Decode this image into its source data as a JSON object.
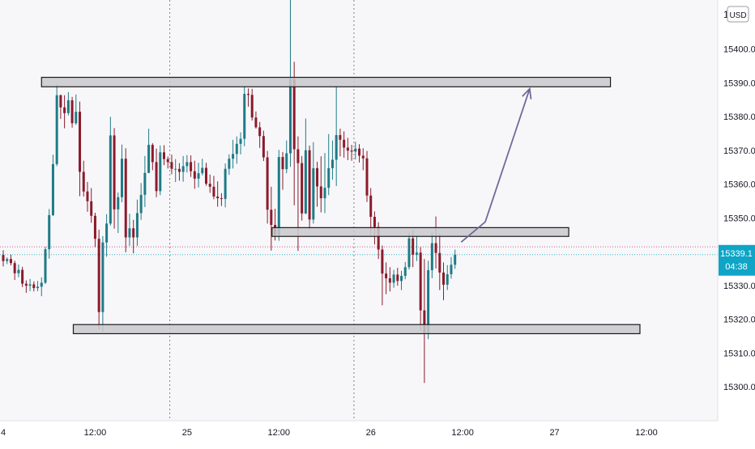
{
  "chart_data": {
    "type": "candlestick",
    "title": "",
    "currency_badge": "USD",
    "axis_top_label": "1",
    "ylim": [
      15294,
      15426
    ],
    "y_ticks": [
      "15400.0",
      "15390.0",
      "15380.0",
      "15370.0",
      "15360.0",
      "15350.0",
      "15340.0",
      "15330.0",
      "15320.0",
      "15310.0",
      "15300.0"
    ],
    "y_tick_values": [
      15400,
      15390,
      15380,
      15370,
      15360,
      15350,
      15340,
      15330,
      15320,
      15310,
      15300
    ],
    "x_ticks": [
      "4",
      "12:00",
      "25",
      "12:00",
      "26",
      "12:00",
      "27",
      "12:00"
    ],
    "x_tick_values": [
      0,
      24,
      48,
      72,
      96,
      120,
      144,
      168
    ],
    "xlim": [
      0,
      188
    ],
    "day_separators": [
      43.5,
      91.6
    ],
    "current_price": "15339.1",
    "countdown": "04:38",
    "last_price_value": 15339.1,
    "prev_close_value": 15341.4,
    "colors": {
      "up": "#1e7b86",
      "down": "#8b1a2b",
      "price_line": "#3bb3c4",
      "prev_close_line": "#c85d8a",
      "price_badge": "#0ea5c7",
      "box_fill": "#c9c9cc",
      "box_stroke": "#1a1a1a",
      "arrow": "#6f6a98",
      "background": "#f7f7fa"
    },
    "zones": [
      {
        "x0": 10,
        "x1": 158.6,
        "y_top": 15391.6,
        "y_bottom": 15388.8
      },
      {
        "x0": 70.2,
        "x1": 147.7,
        "y_top": 15347.1,
        "y_bottom": 15344.5
      },
      {
        "x0": 18.3,
        "x1": 166.3,
        "y_top": 15318.4,
        "y_bottom": 15315.7
      }
    ],
    "projection_arrow": [
      [
        119.6,
        15342.8
      ],
      [
        125.9,
        15348.8
      ],
      [
        137.5,
        15388.2
      ]
    ],
    "candles": [
      [
        0,
        15339,
        15340.4,
        15335.6,
        15337.2
      ],
      [
        1,
        15337.2,
        15338.3,
        15336.3,
        15337.8
      ],
      [
        2,
        15337.8,
        15339.1,
        15335.9,
        15336.6
      ],
      [
        3,
        15336.6,
        15337.3,
        15331.6,
        15333.6
      ],
      [
        4,
        15333.6,
        15336.2,
        15332.4,
        15334.6
      ],
      [
        5,
        15334.6,
        15335.5,
        15329.5,
        15330.5
      ],
      [
        6,
        15330.5,
        15331.5,
        15327.8,
        15329.9
      ],
      [
        7,
        15329.9,
        15331.9,
        15328.3,
        15330.3
      ],
      [
        8,
        15330.3,
        15331.2,
        15328.2,
        15329.2
      ],
      [
        9,
        15329.2,
        15331.3,
        15328.3,
        15329.6
      ],
      [
        10,
        15329.6,
        15332.4,
        15326.8,
        15330.8
      ],
      [
        11,
        15330.8,
        15341.4,
        15330.4,
        15340.7
      ],
      [
        12,
        15340.7,
        15352.6,
        15337.9,
        15350.8
      ],
      [
        13,
        15350.8,
        15368.7,
        15350.5,
        15365.9
      ],
      [
        14,
        15365.9,
        15389.5,
        15365.3,
        15386.3
      ],
      [
        15,
        15386.3,
        15386.5,
        15379.3,
        15382.7
      ],
      [
        16,
        15382.7,
        15386.3,
        15376.5,
        15381
      ],
      [
        17,
        15381,
        15387.2,
        15380.3,
        15384.8
      ],
      [
        18,
        15384.8,
        15385.8,
        15376.7,
        15378
      ],
      [
        19,
        15378,
        15386.5,
        15377.5,
        15381.4
      ],
      [
        20,
        15381.4,
        15384.4,
        15356.4,
        15363.6
      ],
      [
        21,
        15363.6,
        15366.9,
        15356.3,
        15357.8
      ],
      [
        22,
        15357.8,
        15360.6,
        15351.8,
        15354.9
      ],
      [
        23,
        15354.9,
        15358.8,
        15348.5,
        15350.6
      ],
      [
        24,
        15350.6,
        15351.5,
        15341.3,
        15343.8
      ],
      [
        25,
        15343.8,
        15346.5,
        15316.9,
        15322.1
      ],
      [
        26,
        15322.1,
        15344.6,
        15316.3,
        15342.7
      ],
      [
        27,
        15342.7,
        15351.1,
        15338.5,
        15348.3
      ],
      [
        28,
        15348.3,
        15379.9,
        15347.7,
        15374.4
      ],
      [
        29,
        15374.4,
        15376.6,
        15346.8,
        15352.5
      ],
      [
        30,
        15352.5,
        15357.5,
        15345.5,
        15356.1
      ],
      [
        31,
        15356.1,
        15371.7,
        15354.6,
        15367.5
      ],
      [
        32,
        15367.5,
        15370.6,
        15339.8,
        15344.2
      ],
      [
        33,
        15344.2,
        15351.2,
        15341.7,
        15346.9
      ],
      [
        34,
        15346.9,
        15349.4,
        15339.5,
        15344.2
      ],
      [
        35,
        15344.2,
        15355.4,
        15341.7,
        15351.4
      ],
      [
        36,
        15351.4,
        15360.3,
        15349.4,
        15356.8
      ],
      [
        37,
        15356.8,
        15368.3,
        15353.2,
        15363.3
      ],
      [
        38,
        15363.3,
        15376.4,
        15363.2,
        15371.6
      ],
      [
        39,
        15371.6,
        15372.1,
        15364.1,
        15366.5
      ],
      [
        40,
        15366.5,
        15370.5,
        15356.1,
        15357.9
      ],
      [
        41,
        15357.9,
        15371.4,
        15356.7,
        15369.4
      ],
      [
        42,
        15369.4,
        15371.5,
        15365.6,
        15367.4
      ],
      [
        43,
        15367.4,
        15368.2,
        15364.6,
        15366.5
      ],
      [
        44,
        15366.5,
        15368.7,
        15362.9,
        15364.5
      ],
      [
        45,
        15364.5,
        15367.4,
        15360.6,
        15364.5
      ],
      [
        46,
        15364.5,
        15366.2,
        15361,
        15363.6
      ],
      [
        47,
        15363.6,
        15368.3,
        15360.7,
        15365.3
      ],
      [
        48,
        15365.3,
        15368.6,
        15363.4,
        15366.5
      ],
      [
        49,
        15366.5,
        15368.5,
        15362.1,
        15363.8
      ],
      [
        50,
        15363.8,
        15366.9,
        15358.6,
        15361.6
      ],
      [
        51,
        15361.6,
        15366.3,
        15359,
        15363.2
      ],
      [
        52,
        15363.2,
        15367.5,
        15362.6,
        15364.8
      ],
      [
        53,
        15364.8,
        15366.3,
        15359.5,
        15360.1
      ],
      [
        54,
        15360.1,
        15362.8,
        15357.4,
        15359.2
      ],
      [
        55,
        15359.2,
        15362.4,
        15355.5,
        15356.3
      ],
      [
        56,
        15356.3,
        15360.8,
        15353.3,
        15355.8
      ],
      [
        57,
        15355.8,
        15357.3,
        15353.5,
        15355.6
      ],
      [
        58,
        15355.6,
        15366.1,
        15353.1,
        15364.5
      ],
      [
        59,
        15364.5,
        15368.8,
        15362.7,
        15367.5
      ],
      [
        60,
        15367.5,
        15373.1,
        15364.6,
        15368.9
      ],
      [
        61,
        15368.9,
        15374.1,
        15366,
        15371.9
      ],
      [
        62,
        15371.9,
        15375.3,
        15368.8,
        15373.4
      ],
      [
        63,
        15373.4,
        15389,
        15371.2,
        15386.7
      ],
      [
        64,
        15386.7,
        15388.3,
        15382.9,
        15386.4
      ],
      [
        65,
        15386.4,
        15388.2,
        15378.8,
        15379.7
      ],
      [
        66,
        15379.7,
        15381.5,
        15376.4,
        15376.8
      ],
      [
        67,
        15376.8,
        15378.4,
        15370.7,
        15374.2
      ],
      [
        68,
        15374.2,
        15375.8,
        15366.8,
        15367.9
      ],
      [
        69,
        15367.9,
        15369.8,
        15348.3,
        15352.4
      ],
      [
        70,
        15352.4,
        15359.2,
        15340.3,
        15347.9
      ],
      [
        71,
        15347.9,
        15352.7,
        15343.3,
        15344.9
      ],
      [
        72,
        15344.9,
        15370.1,
        15343.2,
        15368
      ],
      [
        73,
        15368,
        15369.5,
        15358.3,
        15364.4
      ],
      [
        74,
        15364.4,
        15372.9,
        15363.2,
        15369.1
      ],
      [
        75,
        15369.1,
        15422.6,
        15365.1,
        15391.1
      ],
      [
        76,
        15391.1,
        15396.2,
        15353.7,
        15370.3
      ],
      [
        77,
        15370.3,
        15374.1,
        15340.2,
        15366.2
      ],
      [
        78,
        15366.2,
        15368.3,
        15349.2,
        15351.3
      ],
      [
        79,
        15351.3,
        15379.4,
        15351.1,
        15370
      ],
      [
        80,
        15370,
        15371.4,
        15346.6,
        15349.5
      ],
      [
        81,
        15349.5,
        15372.4,
        15348.3,
        15364.7
      ],
      [
        82,
        15364.7,
        15366.6,
        15353.3,
        15359.3
      ],
      [
        83,
        15359.3,
        15368.2,
        15351.6,
        15355.8
      ],
      [
        84,
        15355.8,
        15369.2,
        15351.4,
        15358.9
      ],
      [
        85,
        15358.9,
        15374.8,
        15356.7,
        15364.7
      ],
      [
        86,
        15364.7,
        15372.9,
        15361.3,
        15367.2
      ],
      [
        87,
        15367.2,
        15388.8,
        15359.4,
        15374.5
      ],
      [
        88,
        15374.5,
        15376.4,
        15368.2,
        15373.1
      ],
      [
        89,
        15373.1,
        15375.6,
        15367.8,
        15370.8
      ],
      [
        90,
        15370.8,
        15373.7,
        15367.1,
        15369.9
      ],
      [
        91,
        15369.9,
        15371.6,
        15366.9,
        15369.6
      ],
      [
        92,
        15369.6,
        15372.5,
        15367.3,
        15370.5
      ],
      [
        93,
        15370.5,
        15371.8,
        15366.4,
        15368.4
      ],
      [
        94,
        15368.4,
        15370.6,
        15364.1,
        15367.6
      ],
      [
        95,
        15367.6,
        15369.8,
        15354.7,
        15356.6
      ],
      [
        96,
        15356.6,
        15358.8,
        15344.9,
        15350.3
      ],
      [
        97,
        15350.3,
        15351.9,
        15342.1,
        15347.3
      ],
      [
        98,
        15347.3,
        15348.7,
        15337.8,
        15340.6
      ],
      [
        99,
        15340.6,
        15341.8,
        15324.1,
        15333.5
      ],
      [
        100,
        15333.5,
        15336.8,
        15327.4,
        15332.1
      ],
      [
        101,
        15332.1,
        15335.4,
        15328.2,
        15330.8
      ],
      [
        102,
        15330.8,
        15334.6,
        15329.3,
        15333.2
      ],
      [
        103,
        15333.2,
        15335.2,
        15329.9,
        15331.3
      ],
      [
        104,
        15331.3,
        15334.3,
        15328.6,
        15332.8
      ],
      [
        105,
        15332.8,
        15336.9,
        15331.8,
        15335.4
      ],
      [
        106,
        15335.4,
        15345.6,
        15334.7,
        15343.9
      ],
      [
        107,
        15343.9,
        15346.4,
        15335.4,
        15339.1
      ],
      [
        108,
        15339.1,
        15344.7,
        15337.2,
        15339.7
      ],
      [
        109,
        15339.7,
        15341.3,
        15316.5,
        15322.6
      ],
      [
        110,
        15322.6,
        15337.8,
        15301.1,
        15315.8
      ],
      [
        111,
        15315.8,
        15337.3,
        15314.1,
        15334.5
      ],
      [
        112,
        15334.5,
        15345.7,
        15332.1,
        15342.5
      ],
      [
        113,
        15342.5,
        15350.4,
        15335,
        15339.6
      ],
      [
        114,
        15339.6,
        15345.2,
        15328.6,
        15333.8
      ],
      [
        115,
        15333.8,
        15336.8,
        15325.6,
        15330.2
      ],
      [
        116,
        15330.2,
        15336,
        15328.6,
        15333.3
      ],
      [
        117,
        15333.3,
        15338.4,
        15332,
        15336.1
      ],
      [
        118,
        15336.1,
        15340.6,
        15334.9,
        15339.1
      ]
    ]
  }
}
